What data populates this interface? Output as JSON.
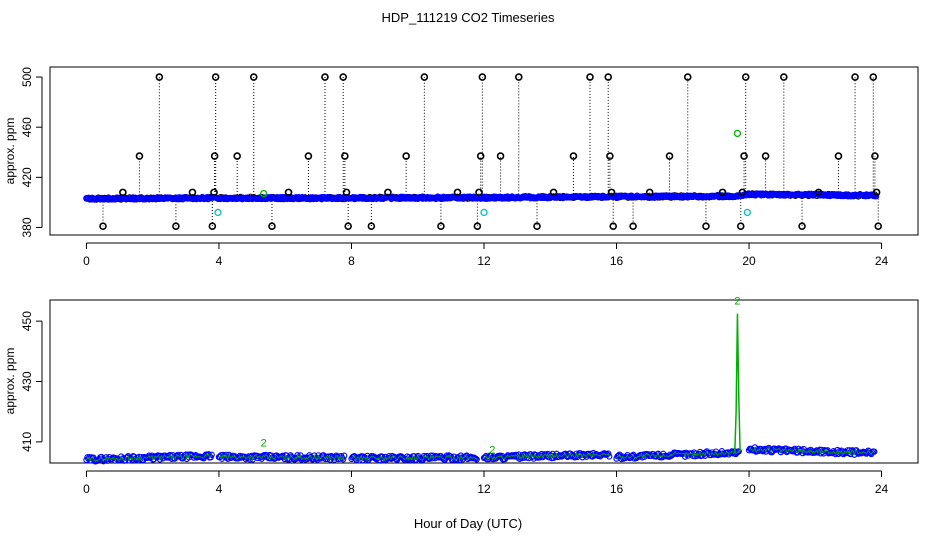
{
  "figure": {
    "title": "HDP_111219  CO2 Timeseries",
    "xlabel": "Hour of Day (UTC)"
  },
  "colors": {
    "raw_points": "#000000",
    "qc_points": "#0000ff",
    "flag_points": "#00bfbf",
    "filtered_line": "#00b000",
    "spike_stems": "#000000"
  },
  "chart_data": [
    {
      "type": "scatter",
      "panel": "top",
      "ylabel": "approx. ppm",
      "xlim": [
        -1.1,
        25.1
      ],
      "ylim": [
        374,
        508
      ],
      "x_ticks": [
        0,
        4,
        8,
        12,
        16,
        20,
        24
      ],
      "y_ticks": [
        380,
        420,
        460,
        500
      ],
      "baseline": [
        {
          "x": 0,
          "y": 403
        },
        {
          "x": 4,
          "y": 403.5
        },
        {
          "x": 8,
          "y": 403.5
        },
        {
          "x": 12,
          "y": 403.8
        },
        {
          "x": 16,
          "y": 404.5
        },
        {
          "x": 19.7,
          "y": 405
        },
        {
          "x": 20,
          "y": 406.5
        },
        {
          "x": 22,
          "y": 406
        },
        {
          "x": 23.8,
          "y": 405.5
        }
      ],
      "outliers": [
        {
          "x": 0.5,
          "y": 381
        },
        {
          "x": 1.1,
          "y": 408
        },
        {
          "x": 1.6,
          "y": 437
        },
        {
          "x": 2.2,
          "y": 500
        },
        {
          "x": 2.7,
          "y": 381
        },
        {
          "x": 3.2,
          "y": 408
        },
        {
          "x": 3.8,
          "y": 381
        },
        {
          "x": 3.85,
          "y": 408
        },
        {
          "x": 3.87,
          "y": 437
        },
        {
          "x": 3.9,
          "y": 500
        },
        {
          "x": 4.55,
          "y": 437
        },
        {
          "x": 5.05,
          "y": 500
        },
        {
          "x": 5.6,
          "y": 381
        },
        {
          "x": 6.1,
          "y": 408
        },
        {
          "x": 6.7,
          "y": 437
        },
        {
          "x": 7.2,
          "y": 500
        },
        {
          "x": 7.75,
          "y": 500
        },
        {
          "x": 7.8,
          "y": 437
        },
        {
          "x": 7.85,
          "y": 408
        },
        {
          "x": 7.9,
          "y": 381
        },
        {
          "x": 8.6,
          "y": 381
        },
        {
          "x": 9.1,
          "y": 408
        },
        {
          "x": 9.65,
          "y": 437
        },
        {
          "x": 10.2,
          "y": 500
        },
        {
          "x": 10.7,
          "y": 381
        },
        {
          "x": 11.2,
          "y": 408
        },
        {
          "x": 11.8,
          "y": 381
        },
        {
          "x": 11.85,
          "y": 408
        },
        {
          "x": 11.9,
          "y": 437
        },
        {
          "x": 11.95,
          "y": 500
        },
        {
          "x": 12.5,
          "y": 437
        },
        {
          "x": 13.05,
          "y": 500
        },
        {
          "x": 13.6,
          "y": 381
        },
        {
          "x": 14.1,
          "y": 408
        },
        {
          "x": 14.7,
          "y": 437
        },
        {
          "x": 15.2,
          "y": 500
        },
        {
          "x": 15.75,
          "y": 500
        },
        {
          "x": 15.8,
          "y": 437
        },
        {
          "x": 15.85,
          "y": 408
        },
        {
          "x": 15.9,
          "y": 381
        },
        {
          "x": 16.5,
          "y": 381
        },
        {
          "x": 17.0,
          "y": 408
        },
        {
          "x": 17.6,
          "y": 437
        },
        {
          "x": 18.15,
          "y": 500
        },
        {
          "x": 18.7,
          "y": 381
        },
        {
          "x": 19.2,
          "y": 408
        },
        {
          "x": 19.75,
          "y": 381
        },
        {
          "x": 19.8,
          "y": 408
        },
        {
          "x": 19.85,
          "y": 437
        },
        {
          "x": 19.9,
          "y": 500
        },
        {
          "x": 20.5,
          "y": 437
        },
        {
          "x": 21.05,
          "y": 500
        },
        {
          "x": 21.6,
          "y": 381
        },
        {
          "x": 22.1,
          "y": 408
        },
        {
          "x": 22.7,
          "y": 437
        },
        {
          "x": 23.2,
          "y": 500
        },
        {
          "x": 23.75,
          "y": 500
        },
        {
          "x": 23.8,
          "y": 437
        },
        {
          "x": 23.85,
          "y": 408
        },
        {
          "x": 23.9,
          "y": 381
        }
      ],
      "flagged_points": [
        {
          "x": 3.97,
          "y": 392
        },
        {
          "x": 12.0,
          "y": 392
        },
        {
          "x": 19.95,
          "y": 392
        },
        {
          "x": 5.35,
          "y": 407
        },
        {
          "x": 19.65,
          "y": 455
        }
      ]
    },
    {
      "type": "line",
      "panel": "bottom",
      "ylabel": "approx. ppm",
      "xlim": [
        -1.1,
        25.1
      ],
      "ylim": [
        403,
        457
      ],
      "x_ticks": [
        0,
        4,
        8,
        12,
        16,
        20,
        24
      ],
      "y_ticks": [
        410,
        430,
        450
      ],
      "segments": [
        {
          "x_start": 0,
          "x_end": 3.8,
          "y_start": 404.2,
          "y_end": 405.3
        },
        {
          "x_start": 4.0,
          "x_end": 7.8,
          "y_start": 405.0,
          "y_end": 404.8
        },
        {
          "x_start": 8.0,
          "x_end": 11.8,
          "y_start": 404.6,
          "y_end": 404.8
        },
        {
          "x_start": 12.0,
          "x_end": 15.8,
          "y_start": 404.8,
          "y_end": 405.8
        },
        {
          "x_start": 16.0,
          "x_end": 19.7,
          "y_start": 405.0,
          "y_end": 406.5
        },
        {
          "x_start": 20.0,
          "x_end": 23.8,
          "y_start": 407.5,
          "y_end": 406.3
        }
      ],
      "spike": {
        "x": 19.65,
        "y": 452.5
      },
      "labels": [
        {
          "x": 5.35,
          "y": 408.5,
          "text": "2"
        },
        {
          "x": 12.25,
          "y": 406.2,
          "text": "2"
        },
        {
          "x": 19.65,
          "y": 455.5,
          "text": "2"
        }
      ]
    }
  ]
}
